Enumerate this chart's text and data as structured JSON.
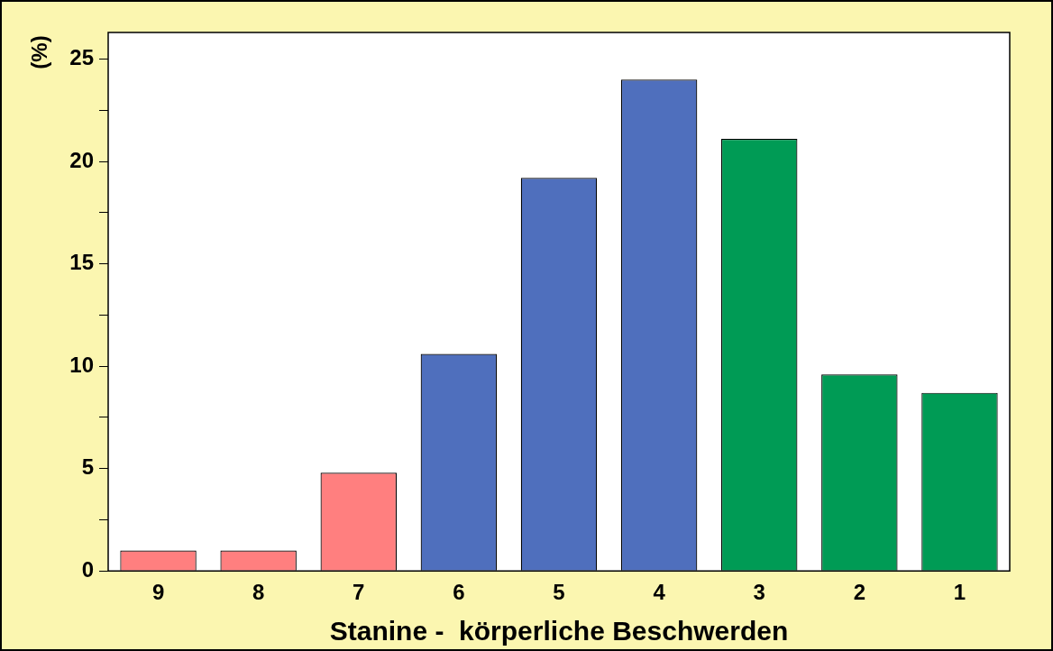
{
  "chart_data": {
    "type": "bar",
    "xlabel": "Stanine -  körperliche Beschwerden",
    "ylabel": "(%)",
    "categories": [
      "9",
      "8",
      "7",
      "6",
      "5",
      "4",
      "3",
      "2",
      "1"
    ],
    "values": [
      1.0,
      1.0,
      4.8,
      10.6,
      19.2,
      24.0,
      21.1,
      9.6,
      8.7
    ],
    "colors": [
      "#ff7f7f",
      "#ff7f7f",
      "#ff7f7f",
      "#4f6fbd",
      "#4f6fbd",
      "#4f6fbd",
      "#009b55",
      "#009b55",
      "#009b55"
    ],
    "ylim": [
      0,
      26.3
    ],
    "yticks": [
      0,
      {
        "value": 2.5,
        "label": null
      },
      5,
      {
        "value": 7.5,
        "label": null
      },
      10,
      {
        "value": 12.5,
        "label": null
      },
      15,
      {
        "value": 17.5,
        "label": null
      },
      20,
      {
        "value": 22.5,
        "label": null
      },
      25
    ],
    "grid": false,
    "legend": false
  }
}
